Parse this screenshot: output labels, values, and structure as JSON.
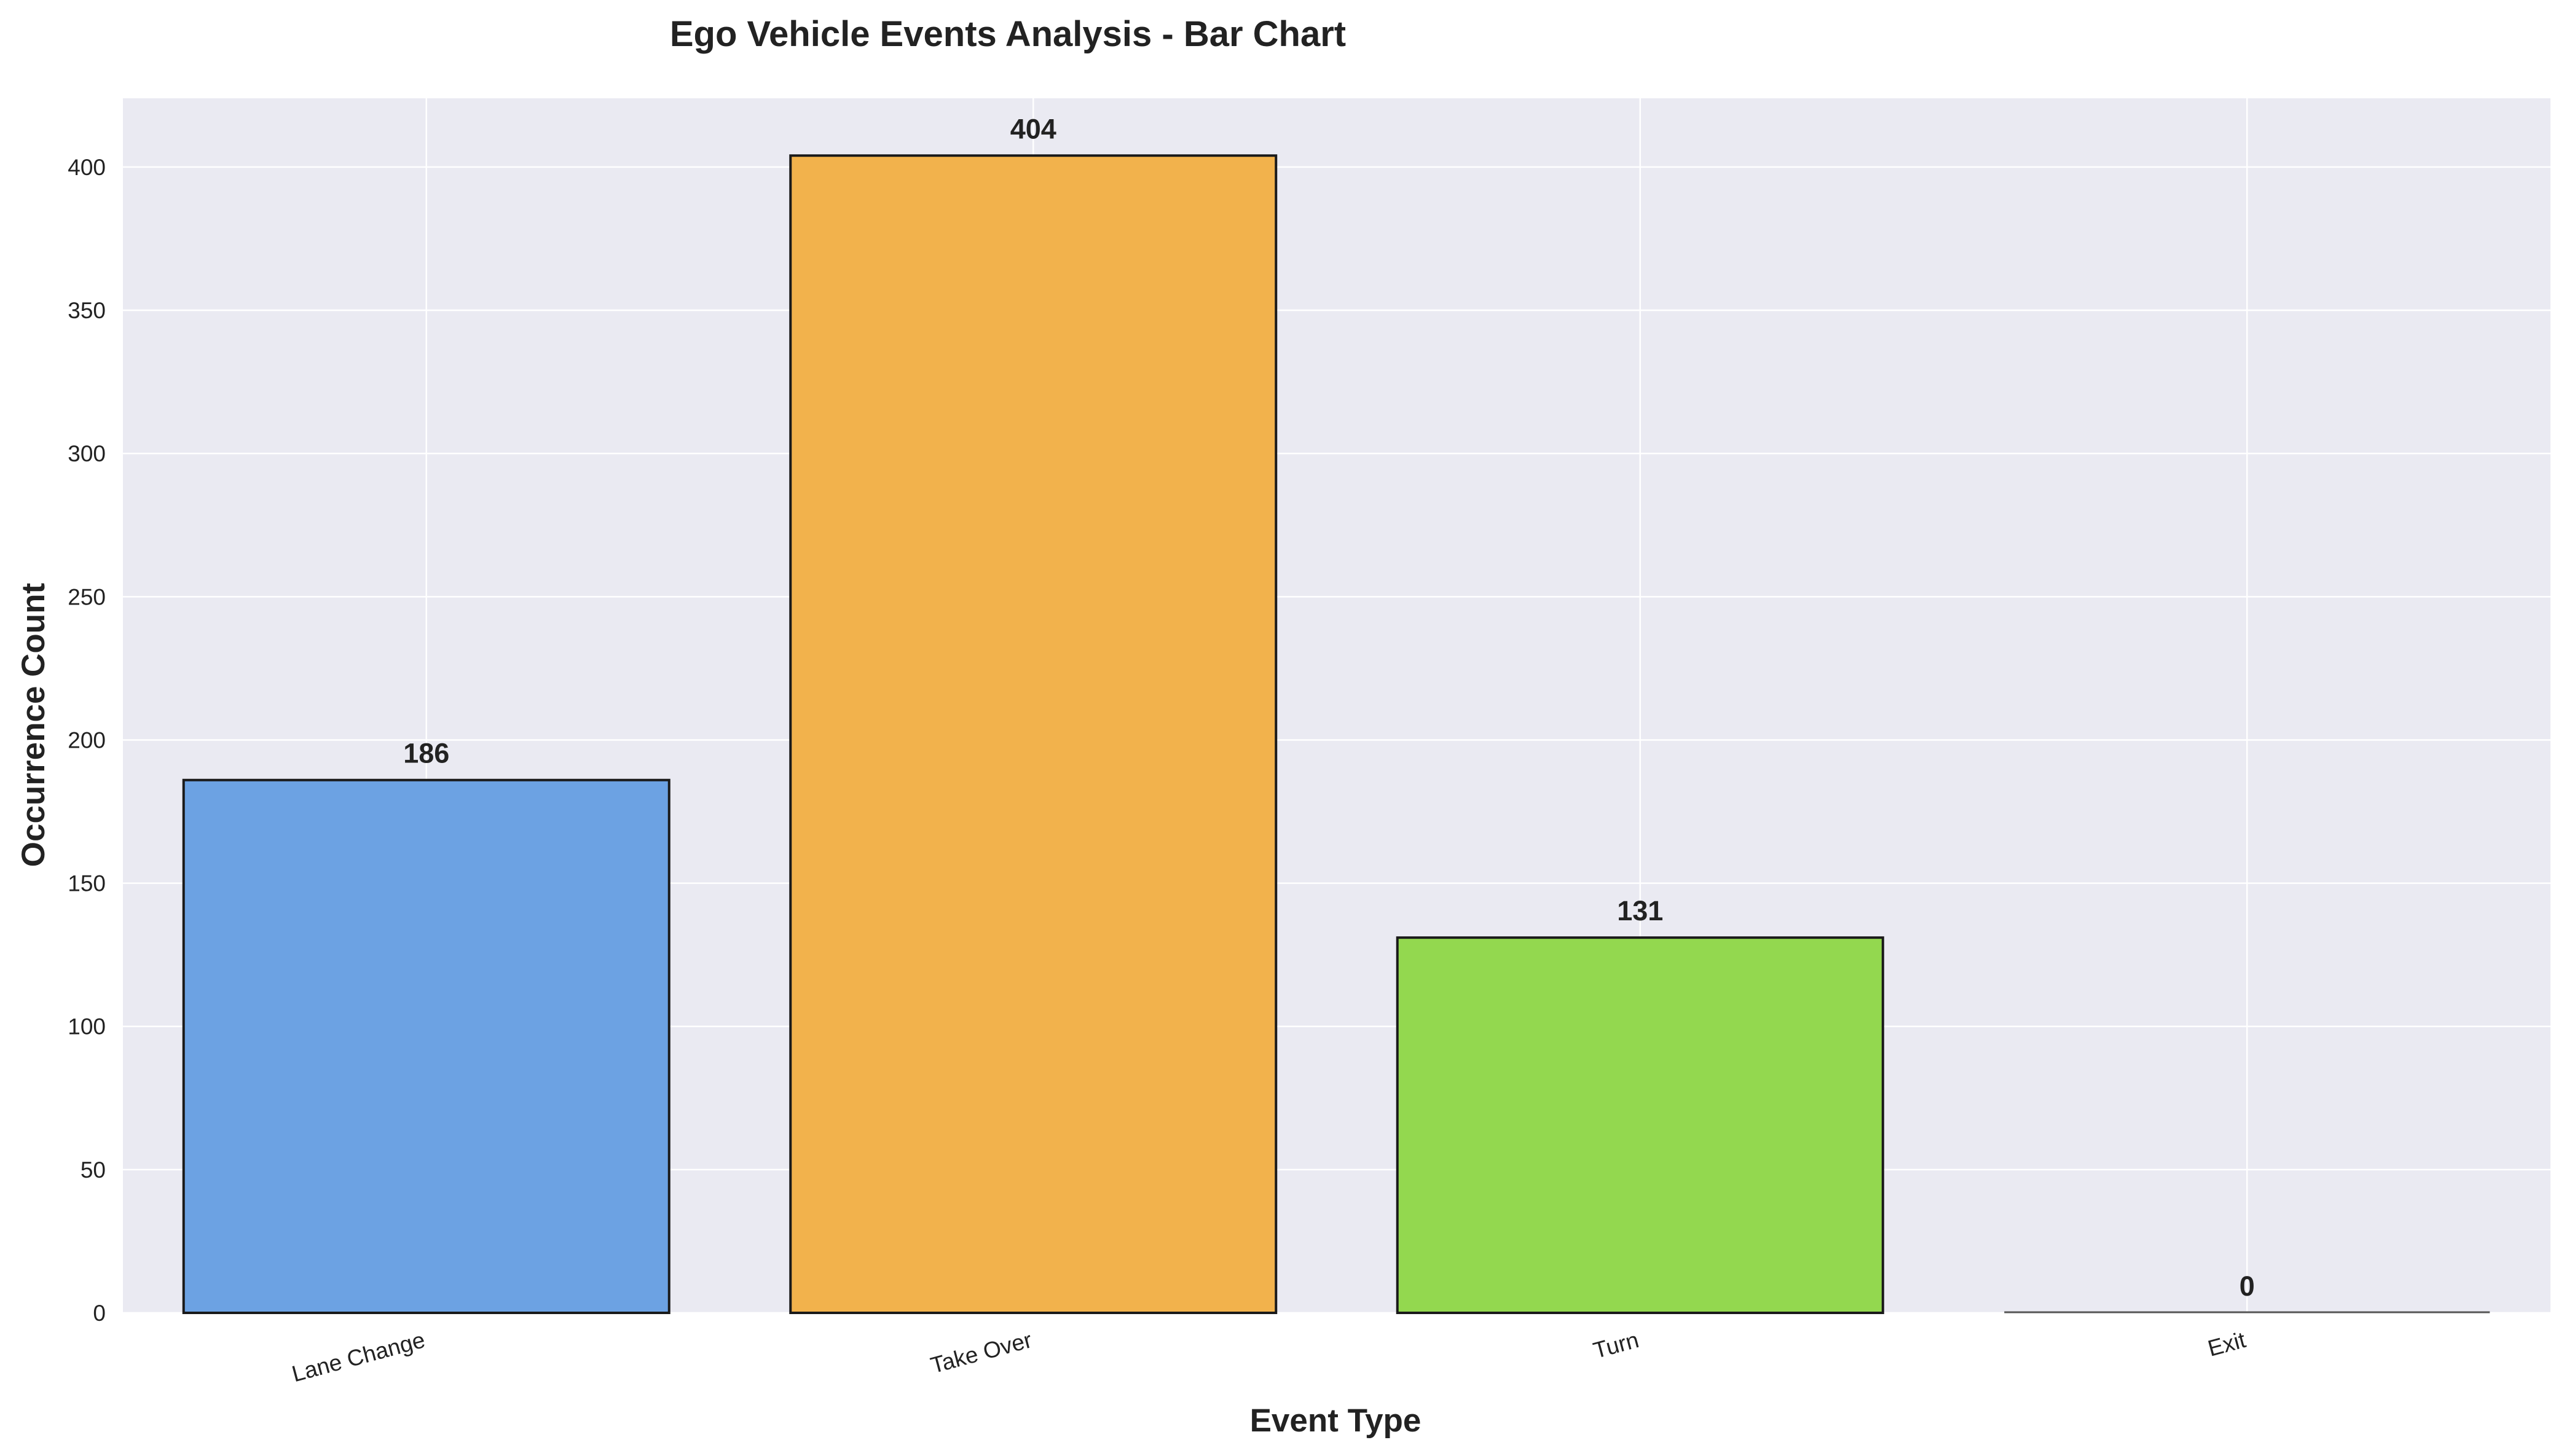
{
  "chart_data": {
    "type": "bar",
    "title": "Ego Vehicle Events Analysis - Bar Chart",
    "xlabel": "Event Type",
    "ylabel": "Occurrence Count",
    "categories": [
      "Lane Change",
      "Take Over",
      "Turn",
      "Exit"
    ],
    "values": [
      186,
      404,
      131,
      0
    ],
    "data_labels": [
      "186",
      "404",
      "131",
      "0"
    ],
    "colors": [
      "#6ca2e3",
      "#f2b24c",
      "#93d84f",
      "#93d84f"
    ],
    "edge_color": "#1a1a1a",
    "background_color": "#eaeaf2",
    "grid_color": "#ffffff",
    "ylim": [
      0,
      424
    ],
    "yticks": [
      0,
      50,
      100,
      150,
      200,
      250,
      300,
      350,
      400
    ],
    "ytick_labels": [
      "0",
      "50",
      "100",
      "150",
      "200",
      "250",
      "300",
      "350",
      "400"
    ],
    "grid": true,
    "legend": false,
    "xtick_rotation": "rotated slightly counter-clockwise"
  }
}
